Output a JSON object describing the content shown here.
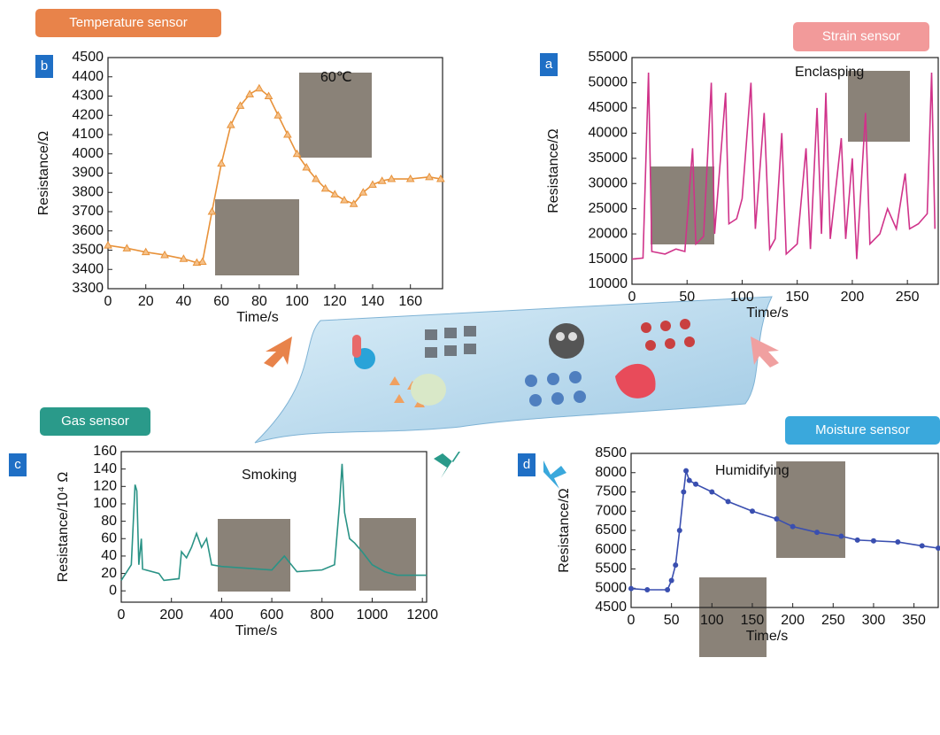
{
  "chart_data": [
    {
      "type": "line",
      "title": "Temperature sensor",
      "panel": "b",
      "annotation": "60℃",
      "marker": "triangle",
      "x_label": "Time/s",
      "y_label": "Resistance/Ω",
      "x": [
        0,
        10,
        20,
        30,
        40,
        47,
        50,
        55,
        60,
        65,
        70,
        75,
        80,
        85,
        90,
        95,
        100,
        105,
        110,
        115,
        120,
        125,
        130,
        135,
        140,
        145,
        150,
        160,
        170,
        176
      ],
      "series": [
        {
          "color": "#e8923a",
          "values": [
            3525,
            3510,
            3490,
            3475,
            3455,
            3435,
            3440,
            3700,
            3950,
            4150,
            4250,
            4310,
            4340,
            4300,
            4200,
            4100,
            4000,
            3930,
            3870,
            3820,
            3790,
            3760,
            3740,
            3800,
            3840,
            3860,
            3870,
            3870,
            3880,
            3870
          ]
        }
      ],
      "xlim": [
        0,
        177
      ],
      "ylim": [
        3300,
        4500
      ],
      "xticks": [
        0,
        20,
        40,
        60,
        80,
        100,
        120,
        140,
        160
      ],
      "yticks": [
        3300,
        3400,
        3500,
        3600,
        3700,
        3800,
        3900,
        4000,
        4100,
        4200,
        4300,
        4400,
        4500
      ]
    },
    {
      "type": "line",
      "title": "Strain sensor",
      "panel": "a",
      "annotation": "Enclasping",
      "marker": "none",
      "x_label": "Time/s",
      "y_label": "Resistance/Ω",
      "x": [
        0,
        10,
        15,
        18,
        30,
        40,
        48,
        55,
        58,
        65,
        72,
        75,
        85,
        88,
        95,
        100,
        108,
        112,
        120,
        125,
        130,
        136,
        140,
        150,
        158,
        162,
        168,
        172,
        176,
        180,
        190,
        194,
        200,
        204,
        212,
        216,
        225,
        232,
        240,
        248,
        252,
        260,
        268,
        272,
        275
      ],
      "series": [
        {
          "color": "#d0338a",
          "values": [
            15000,
            15200,
            52000,
            16500,
            16000,
            17000,
            16500,
            37000,
            18000,
            19500,
            50000,
            20000,
            48000,
            22000,
            23000,
            27000,
            50000,
            21000,
            44000,
            17000,
            19000,
            40000,
            16000,
            18000,
            37000,
            17000,
            45000,
            20000,
            48000,
            19000,
            39000,
            19000,
            35000,
            15000,
            44000,
            18000,
            20000,
            25000,
            21000,
            32000,
            21000,
            22000,
            24000,
            52000,
            21000
          ]
        }
      ],
      "xlim": [
        0,
        278
      ],
      "ylim": [
        10000,
        55000
      ],
      "xticks": [
        0,
        50,
        100,
        150,
        200,
        250
      ],
      "yticks": [
        10000,
        15000,
        20000,
        25000,
        30000,
        35000,
        40000,
        45000,
        50000,
        55000
      ]
    },
    {
      "type": "line",
      "title": "Gas sensor",
      "panel": "c",
      "annotation": "Smoking",
      "marker": "none",
      "x_label": "Time/s",
      "y_label": "Resistance/10⁴ Ω",
      "x": [
        0,
        40,
        55,
        62,
        70,
        80,
        85,
        150,
        170,
        230,
        240,
        260,
        280,
        300,
        320,
        340,
        360,
        400,
        500,
        600,
        650,
        700,
        800,
        850,
        870,
        880,
        890,
        910,
        930,
        960,
        1000,
        1050,
        1100,
        1217
      ],
      "series": [
        {
          "color": "#2a9386",
          "values": [
            12,
            30,
            122,
            115,
            30,
            60,
            25,
            20,
            12,
            14,
            45,
            38,
            50,
            66,
            50,
            60,
            30,
            28,
            26,
            24,
            40,
            22,
            24,
            30,
            100,
            146,
            90,
            60,
            55,
            45,
            30,
            22,
            18,
            18
          ]
        }
      ],
      "xlim": [
        0,
        1217
      ],
      "ylim": [
        -13,
        160
      ],
      "xticks": [
        0,
        200,
        400,
        600,
        800,
        1000,
        1200
      ],
      "yticks": [
        0,
        20,
        40,
        60,
        80,
        100,
        120,
        140,
        160
      ]
    },
    {
      "type": "line",
      "title": "Moisture sensor",
      "panel": "d",
      "annotation": "Humidifying",
      "marker": "circle",
      "x_label": "Time/s",
      "y_label": "Resistance/Ω",
      "x": [
        0,
        20,
        45,
        50,
        55,
        60,
        65,
        68,
        72,
        80,
        100,
        120,
        150,
        180,
        200,
        230,
        260,
        280,
        300,
        330,
        360,
        380
      ],
      "series": [
        {
          "color": "#3a4fb0",
          "values": [
            4990,
            4960,
            4960,
            5200,
            5600,
            6500,
            7500,
            8050,
            7800,
            7700,
            7500,
            7250,
            7000,
            6800,
            6600,
            6450,
            6350,
            6250,
            6230,
            6200,
            6100,
            6040
          ]
        }
      ],
      "xlim": [
        0,
        380
      ],
      "ylim": [
        4500,
        8500
      ],
      "xticks": [
        0,
        50,
        100,
        150,
        200,
        250,
        300,
        350
      ],
      "yticks": [
        4500,
        5000,
        5500,
        6000,
        6500,
        7000,
        7500,
        8000,
        8500
      ]
    }
  ]
}
